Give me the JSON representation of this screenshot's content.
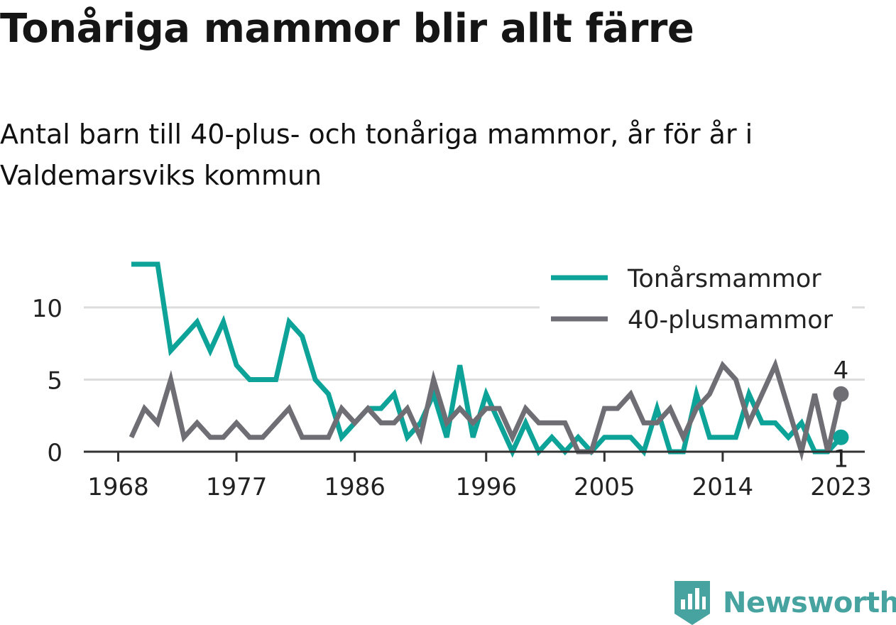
{
  "header": {
    "title": "Tonåriga mammor blir allt färre",
    "subtitle": "Antal barn till 40-plus- och tonåriga mammor, år för år i Valdemarsviks kommun"
  },
  "brand": {
    "name": "Newsworthy",
    "color": "#47a3a0"
  },
  "chart_data": {
    "type": "line",
    "title": "Tonåriga mammor blir allt färre",
    "subtitle": "Antal barn till 40-plus- och tonåriga mammor, år för år i Valdemarsviks kommun",
    "xlabel": "",
    "ylabel": "",
    "x": [
      1969,
      1970,
      1971,
      1972,
      1973,
      1974,
      1975,
      1976,
      1977,
      1978,
      1979,
      1980,
      1981,
      1982,
      1983,
      1984,
      1985,
      1986,
      1987,
      1988,
      1989,
      1990,
      1991,
      1992,
      1993,
      1994,
      1995,
      1996,
      1997,
      1998,
      1999,
      2000,
      2001,
      2002,
      2003,
      2004,
      2005,
      2006,
      2007,
      2008,
      2009,
      2010,
      2011,
      2012,
      2013,
      2014,
      2015,
      2016,
      2017,
      2018,
      2019,
      2020,
      2021,
      2022,
      2023
    ],
    "xticks": [
      1968,
      1977,
      1986,
      1996,
      2005,
      2014,
      2023
    ],
    "xlim": [
      1967,
      2026
    ],
    "yticks": [
      0,
      5,
      10
    ],
    "ylim": [
      0,
      13
    ],
    "grid": true,
    "legend_position": "top-right",
    "series": [
      {
        "name": "Tonårsmammor",
        "color": "#0ea398",
        "values": [
          13,
          13,
          13,
          7,
          8,
          9,
          7,
          9,
          6,
          5,
          5,
          5,
          9,
          8,
          5,
          4,
          1,
          2,
          3,
          3,
          4,
          1,
          2,
          4,
          1,
          6,
          1,
          4,
          2,
          0,
          2,
          0,
          1,
          0,
          1,
          0,
          1,
          1,
          1,
          0,
          3,
          0,
          0,
          4,
          1,
          1,
          1,
          4,
          2,
          2,
          1,
          2,
          0,
          0,
          1
        ],
        "end_label": "1"
      },
      {
        "name": "40-plusmammor",
        "color": "#6f6e75",
        "values": [
          1,
          3,
          2,
          5,
          1,
          2,
          1,
          1,
          2,
          1,
          1,
          2,
          3,
          1,
          1,
          1,
          3,
          2,
          3,
          2,
          2,
          3,
          1,
          5,
          2,
          3,
          2,
          3,
          3,
          1,
          3,
          2,
          2,
          2,
          0,
          0,
          3,
          3,
          4,
          2,
          2,
          3,
          1,
          3,
          4,
          6,
          5,
          2,
          4,
          6,
          3,
          0,
          4,
          0,
          4
        ],
        "end_label": "4"
      }
    ]
  }
}
